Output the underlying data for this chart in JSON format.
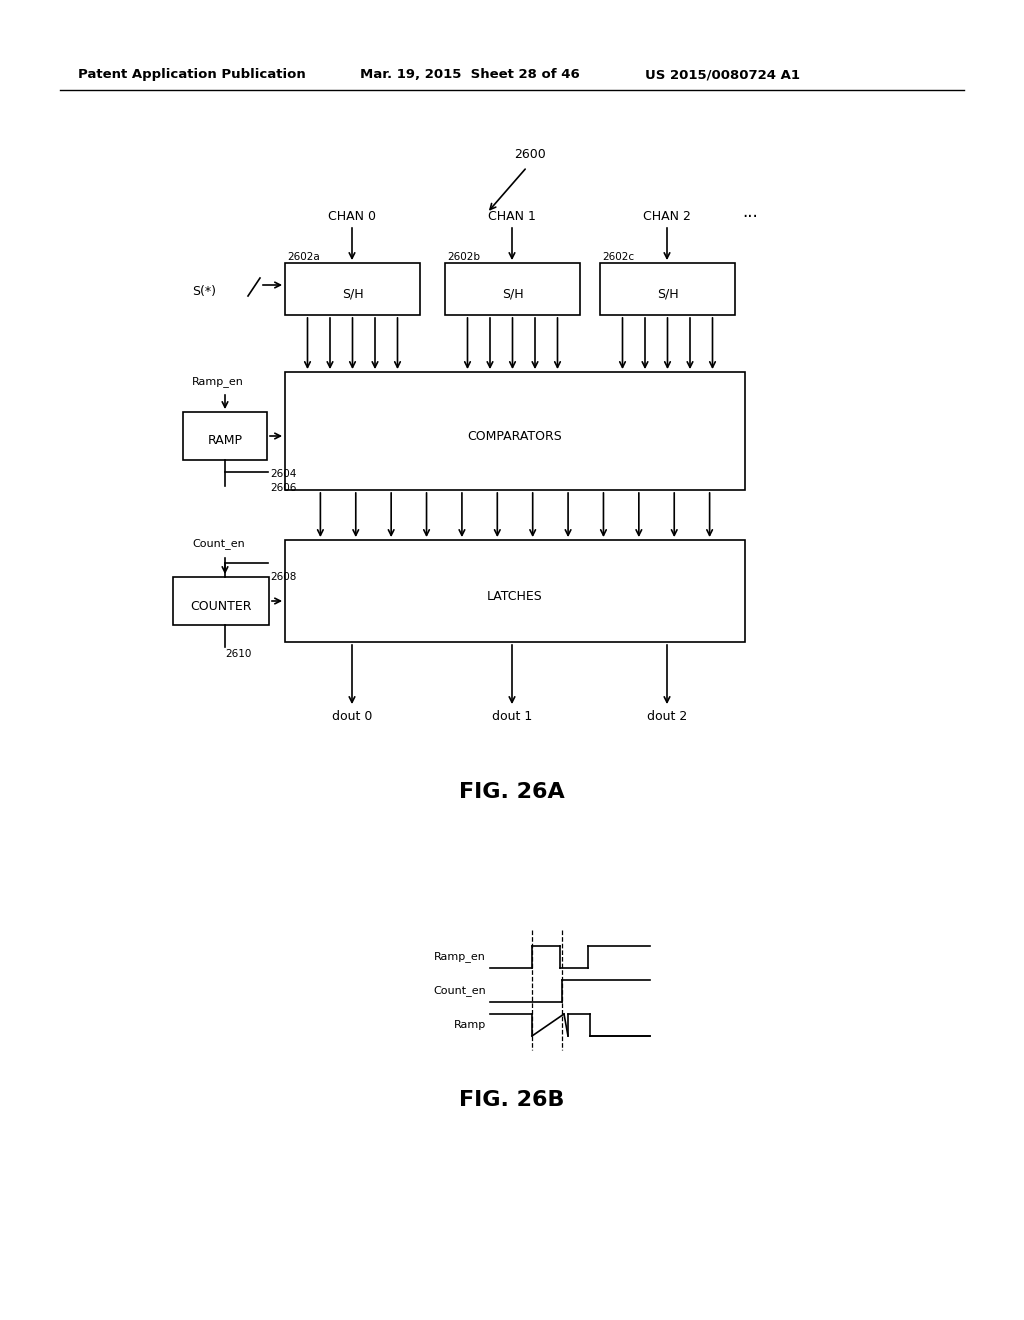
{
  "header_left": "Patent Application Publication",
  "header_mid": "Mar. 19, 2015  Sheet 28 of 46",
  "header_right": "US 2015/0080724 A1",
  "fig_a_label": "FIG. 26A",
  "fig_b_label": "FIG. 26B",
  "label_2600": "2600",
  "label_chan0": "CHAN 0",
  "label_chan1": "CHAN 1",
  "label_chan2": "CHAN 2",
  "label_ellipsis": "···",
  "label_2602a": "2602a",
  "label_2602b": "2602b",
  "label_2602c": "2602c",
  "label_sh": "S/H",
  "label_s_star": "S(*)",
  "label_comparators": "COMPARATORS",
  "label_latches": "LATCHES",
  "label_ramp": "RAMP",
  "label_counter": "COUNTER",
  "label_ramp_en": "Ramp_en",
  "label_count_en": "Count_en",
  "label_2604": "2604",
  "label_2606": "2606",
  "label_2608": "2608",
  "label_2610": "2610",
  "label_dout0": "dout 0",
  "label_dout1": "dout 1",
  "label_dout2": "dout 2",
  "label_ramp_en_b": "Ramp_en",
  "label_count_en_b": "Count_en",
  "label_ramp_b": "Ramp",
  "bg_color": "#ffffff",
  "line_color": "#000000",
  "font_size_header": 9.5,
  "font_size_small": 8.0,
  "font_size_label": 9.0,
  "font_size_fig": 16
}
